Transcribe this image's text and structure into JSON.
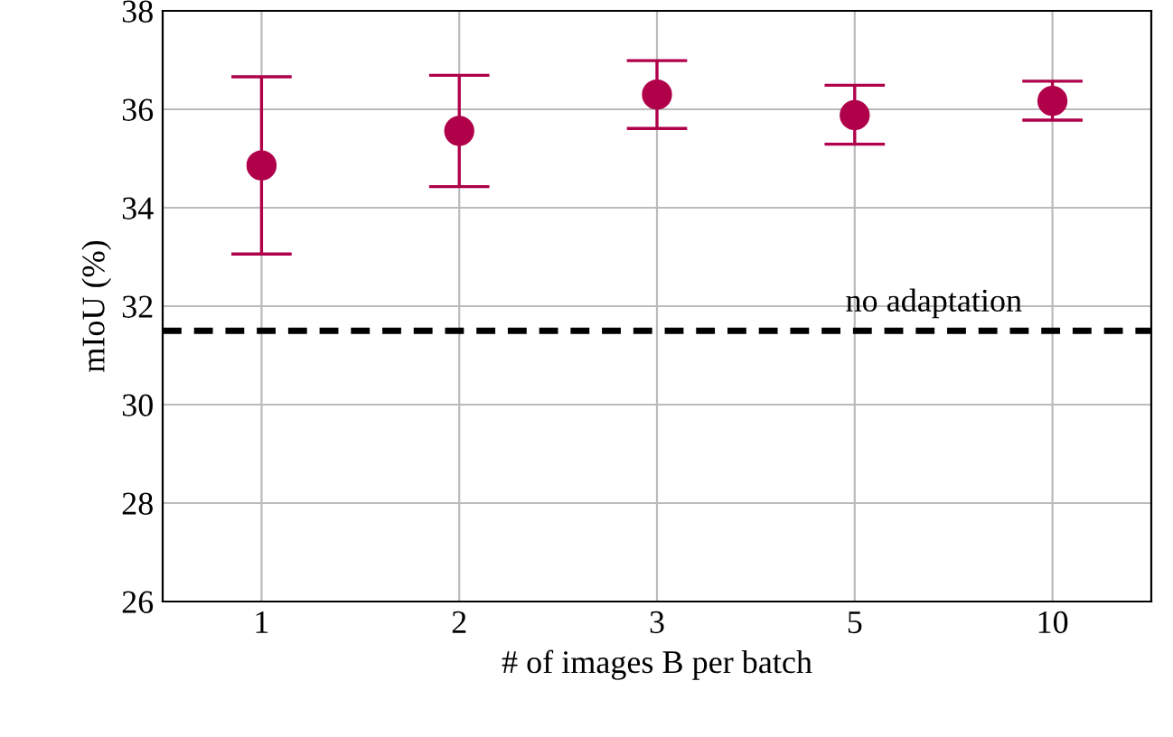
{
  "chart_data": {
    "type": "scatter",
    "xlabel": "# of images B per batch",
    "ylabel": "mIoU (%)",
    "categories": [
      "1",
      "2",
      "3",
      "5",
      "10"
    ],
    "series": [
      {
        "color": "#b0004a",
        "values": [
          34.86,
          35.56,
          36.3,
          35.88,
          36.17
        ],
        "errors": [
          [
            33.06,
            36.66
          ],
          [
            34.43,
            36.69
          ],
          [
            35.61,
            36.99
          ],
          [
            35.29,
            36.49
          ],
          [
            35.78,
            36.57
          ]
        ]
      }
    ],
    "ylim": [
      26,
      38
    ],
    "yticks": [
      26,
      28,
      30,
      32,
      34,
      36,
      38
    ],
    "grid": true,
    "marker": "circle",
    "ref_lines": [
      {
        "axis": "y",
        "value": 31.5,
        "label": "no adaptation",
        "color": "#000000",
        "line_style": "dashed"
      }
    ]
  }
}
